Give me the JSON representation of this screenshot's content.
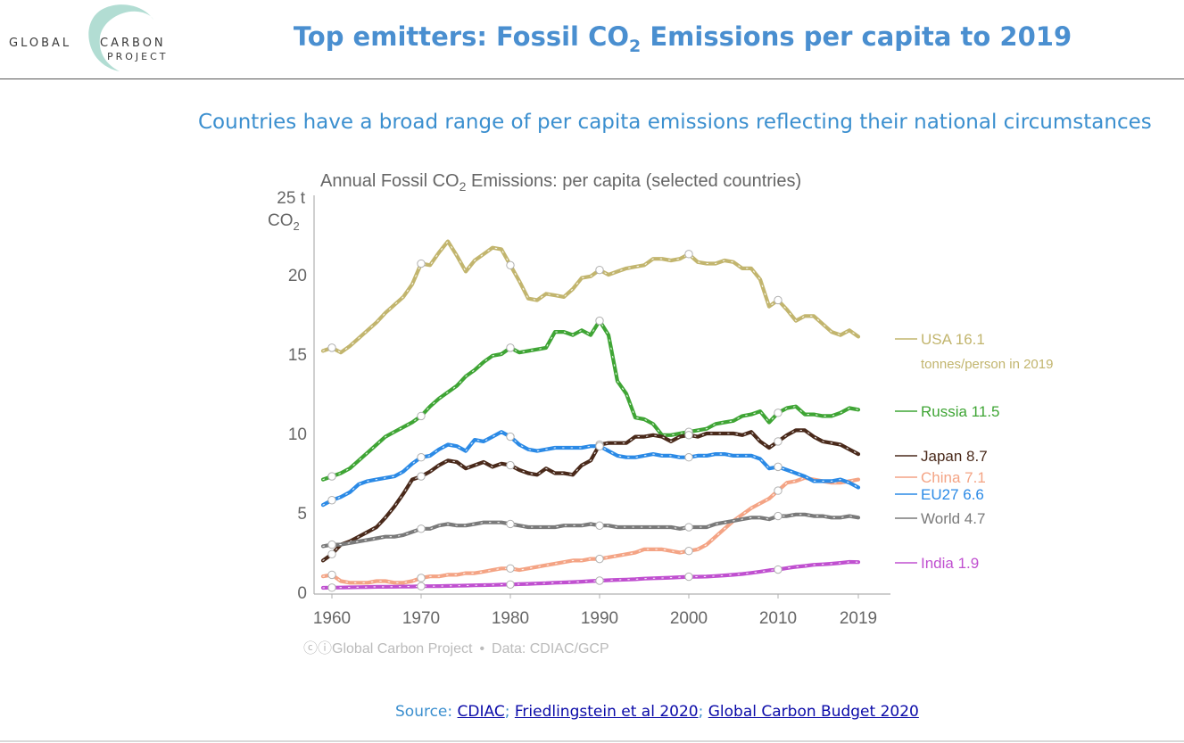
{
  "header": {
    "logo_line1_left": "GLOBAL",
    "logo_line1_right": "CARBON",
    "logo_line2": "PROJECT",
    "title_pre": "Top emitters: Fossil CO",
    "title_sub": "2",
    "title_post": " Emissions per capita to 2019"
  },
  "subtitle": "Countries have a broad range of per capita emissions reflecting their national circumstances",
  "colors": {
    "accent_blue": "#3b8fcf",
    "link_blue": "#0a0aa8"
  },
  "chart_data": {
    "type": "line",
    "title_pre": "Annual Fossil CO",
    "title_sub": "2",
    "title_post": " Emissions: per capita (selected countries)",
    "y_unit_line1": "25 t",
    "y_unit_line2_pre": "CO",
    "y_unit_line2_sub": "2",
    "ylim": [
      0,
      25
    ],
    "xlim": [
      1959,
      2022
    ],
    "y_ticks": [
      "0",
      "5",
      "10",
      "15",
      "20"
    ],
    "x_ticks": [
      {
        "value": 1960,
        "label": "1960"
      },
      {
        "value": 1970,
        "label": "1970"
      },
      {
        "value": 1980,
        "label": "1980"
      },
      {
        "value": 1990,
        "label": "1990"
      },
      {
        "value": 2000,
        "label": "2000"
      },
      {
        "value": 2010,
        "label": "2010"
      },
      {
        "value": 2019,
        "label": "2019"
      }
    ],
    "grid": false,
    "x": [
      1959,
      1960,
      1961,
      1962,
      1963,
      1964,
      1965,
      1966,
      1967,
      1968,
      1969,
      1970,
      1971,
      1972,
      1973,
      1974,
      1975,
      1976,
      1977,
      1978,
      1979,
      1980,
      1981,
      1982,
      1983,
      1984,
      1985,
      1986,
      1987,
      1988,
      1989,
      1990,
      1991,
      1992,
      1993,
      1994,
      1995,
      1996,
      1997,
      1998,
      1999,
      2000,
      2001,
      2002,
      2003,
      2004,
      2005,
      2006,
      2007,
      2008,
      2009,
      2010,
      2011,
      2012,
      2013,
      2014,
      2015,
      2016,
      2017,
      2018,
      2019
    ],
    "series": [
      {
        "name": "USA",
        "label": "USA 16.1",
        "label_extra": "tonnes/person in 2019",
        "color": "#c2b56e",
        "last": 16.1,
        "values": [
          15.2,
          15.4,
          15.1,
          15.5,
          16.0,
          16.5,
          17.0,
          17.6,
          18.1,
          18.6,
          19.4,
          20.7,
          20.6,
          21.4,
          22.1,
          21.2,
          20.2,
          20.9,
          21.3,
          21.7,
          21.6,
          20.6,
          19.6,
          18.5,
          18.4,
          18.8,
          18.7,
          18.6,
          19.1,
          19.8,
          19.9,
          20.3,
          20.0,
          20.2,
          20.4,
          20.5,
          20.6,
          21.0,
          21.0,
          20.9,
          21.0,
          21.3,
          20.8,
          20.7,
          20.7,
          20.9,
          20.8,
          20.4,
          20.4,
          19.7,
          18.0,
          18.4,
          17.8,
          17.1,
          17.4,
          17.4,
          16.9,
          16.4,
          16.2,
          16.5,
          16.1
        ]
      },
      {
        "name": "Russia",
        "label": "Russia 11.5",
        "color": "#3fa535",
        "last": 11.5,
        "values": [
          7.1,
          7.3,
          7.5,
          7.8,
          8.3,
          8.8,
          9.3,
          9.8,
          10.1,
          10.4,
          10.7,
          11.1,
          11.7,
          12.2,
          12.6,
          13.0,
          13.6,
          14.0,
          14.5,
          14.9,
          15.0,
          15.4,
          15.1,
          15.2,
          15.3,
          15.4,
          16.4,
          16.4,
          16.2,
          16.5,
          16.2,
          17.1,
          16.2,
          13.3,
          12.5,
          11.0,
          10.9,
          10.6,
          9.9,
          9.9,
          10.0,
          10.1,
          10.2,
          10.3,
          10.6,
          10.7,
          10.8,
          11.1,
          11.2,
          11.4,
          10.7,
          11.3,
          11.6,
          11.7,
          11.2,
          11.2,
          11.1,
          11.1,
          11.3,
          11.6,
          11.5
        ]
      },
      {
        "name": "Japan",
        "label": "Japan 8.7",
        "color": "#4a2a1b",
        "last": 8.7,
        "values": [
          2.0,
          2.4,
          3.0,
          3.2,
          3.5,
          3.8,
          4.1,
          4.7,
          5.4,
          6.2,
          7.1,
          7.3,
          7.6,
          8.0,
          8.3,
          8.2,
          7.8,
          8.0,
          8.2,
          7.9,
          8.1,
          8.0,
          7.7,
          7.5,
          7.4,
          7.8,
          7.5,
          7.5,
          7.4,
          8.0,
          8.3,
          9.3,
          9.4,
          9.4,
          9.4,
          9.8,
          9.8,
          9.9,
          9.8,
          9.5,
          9.8,
          9.9,
          9.8,
          10.0,
          10.0,
          10.0,
          10.0,
          9.9,
          10.1,
          9.5,
          9.1,
          9.5,
          9.9,
          10.2,
          10.2,
          9.8,
          9.5,
          9.4,
          9.3,
          9.0,
          8.7
        ]
      },
      {
        "name": "China",
        "label": "China 7.1",
        "color": "#f4a485",
        "last": 7.1,
        "values": [
          1.0,
          1.1,
          0.7,
          0.6,
          0.6,
          0.6,
          0.7,
          0.7,
          0.6,
          0.6,
          0.7,
          0.9,
          1.0,
          1.0,
          1.1,
          1.1,
          1.2,
          1.2,
          1.3,
          1.4,
          1.5,
          1.5,
          1.4,
          1.5,
          1.6,
          1.7,
          1.8,
          1.9,
          2.0,
          2.0,
          2.1,
          2.1,
          2.2,
          2.3,
          2.4,
          2.5,
          2.7,
          2.7,
          2.7,
          2.6,
          2.5,
          2.6,
          2.7,
          3.0,
          3.5,
          4.0,
          4.5,
          4.9,
          5.3,
          5.6,
          5.9,
          6.4,
          6.9,
          7.0,
          7.2,
          7.1,
          7.0,
          6.9,
          6.9,
          7.0,
          7.1
        ]
      },
      {
        "name": "EU27",
        "label": "EU27 6.6",
        "color": "#2b8ae6",
        "last": 6.6,
        "values": [
          5.5,
          5.8,
          6.0,
          6.3,
          6.8,
          7.0,
          7.1,
          7.2,
          7.3,
          7.6,
          8.1,
          8.5,
          8.6,
          9.0,
          9.3,
          9.2,
          8.9,
          9.6,
          9.5,
          9.8,
          10.1,
          9.8,
          9.3,
          9.0,
          8.9,
          9.0,
          9.1,
          9.1,
          9.1,
          9.1,
          9.2,
          9.2,
          8.9,
          8.6,
          8.5,
          8.5,
          8.6,
          8.7,
          8.6,
          8.6,
          8.5,
          8.5,
          8.6,
          8.6,
          8.7,
          8.7,
          8.6,
          8.6,
          8.6,
          8.4,
          7.8,
          7.9,
          7.7,
          7.5,
          7.3,
          7.0,
          7.0,
          7.0,
          7.1,
          6.9,
          6.6
        ]
      },
      {
        "name": "World",
        "label": "World 4.7",
        "color": "#7a7a7a",
        "last": 4.7,
        "values": [
          2.9,
          3.0,
          3.0,
          3.1,
          3.2,
          3.3,
          3.4,
          3.5,
          3.5,
          3.6,
          3.8,
          4.0,
          4.0,
          4.2,
          4.3,
          4.2,
          4.2,
          4.3,
          4.4,
          4.4,
          4.4,
          4.3,
          4.2,
          4.1,
          4.1,
          4.1,
          4.1,
          4.2,
          4.2,
          4.2,
          4.3,
          4.2,
          4.2,
          4.1,
          4.1,
          4.1,
          4.1,
          4.1,
          4.1,
          4.1,
          4.0,
          4.1,
          4.1,
          4.1,
          4.3,
          4.4,
          4.5,
          4.6,
          4.7,
          4.7,
          4.6,
          4.8,
          4.8,
          4.9,
          4.9,
          4.8,
          4.8,
          4.7,
          4.7,
          4.8,
          4.7
        ]
      },
      {
        "name": "India",
        "label": "India 1.9",
        "color": "#c050d0",
        "last": 1.9,
        "values": [
          0.28,
          0.29,
          0.3,
          0.31,
          0.32,
          0.33,
          0.34,
          0.34,
          0.35,
          0.36,
          0.36,
          0.38,
          0.38,
          0.39,
          0.4,
          0.41,
          0.42,
          0.44,
          0.45,
          0.46,
          0.48,
          0.49,
          0.51,
          0.53,
          0.55,
          0.57,
          0.6,
          0.62,
          0.64,
          0.67,
          0.7,
          0.73,
          0.76,
          0.78,
          0.8,
          0.82,
          0.86,
          0.88,
          0.9,
          0.92,
          0.95,
          0.98,
          0.98,
          0.99,
          1.02,
          1.06,
          1.1,
          1.15,
          1.22,
          1.3,
          1.38,
          1.43,
          1.52,
          1.6,
          1.66,
          1.73,
          1.76,
          1.8,
          1.85,
          1.91,
          1.9
        ]
      }
    ],
    "footer_credit": "Global Carbon Project",
    "footer_sep": "•",
    "footer_data": "Data: CDIAC/GCP"
  },
  "source": {
    "prefix": "Source: ",
    "links": [
      "CDIAC",
      "Friedlingstein et al 2020",
      "Global Carbon Budget 2020"
    ],
    "separator": "; "
  }
}
